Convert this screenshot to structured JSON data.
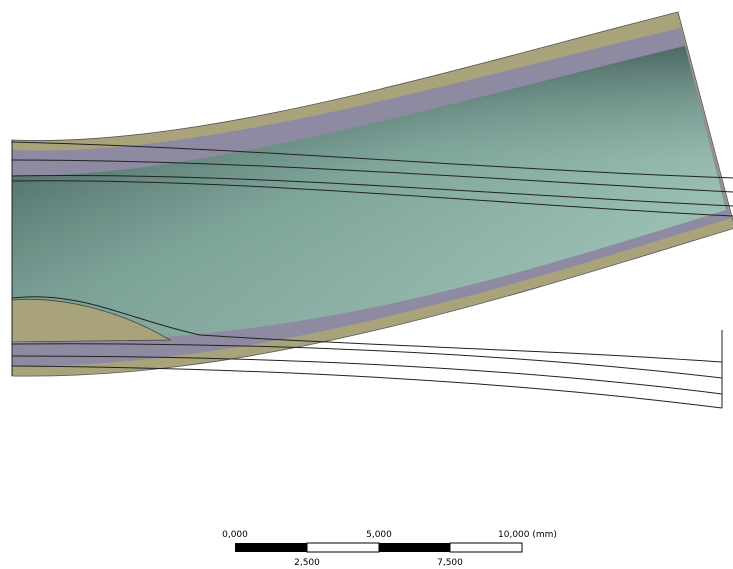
{
  "scale_bar": {
    "labels_top": [
      "0,000",
      "5,000",
      "10,000 (mm)"
    ],
    "labels_bottom": [
      "2,500",
      "7,500"
    ]
  }
}
